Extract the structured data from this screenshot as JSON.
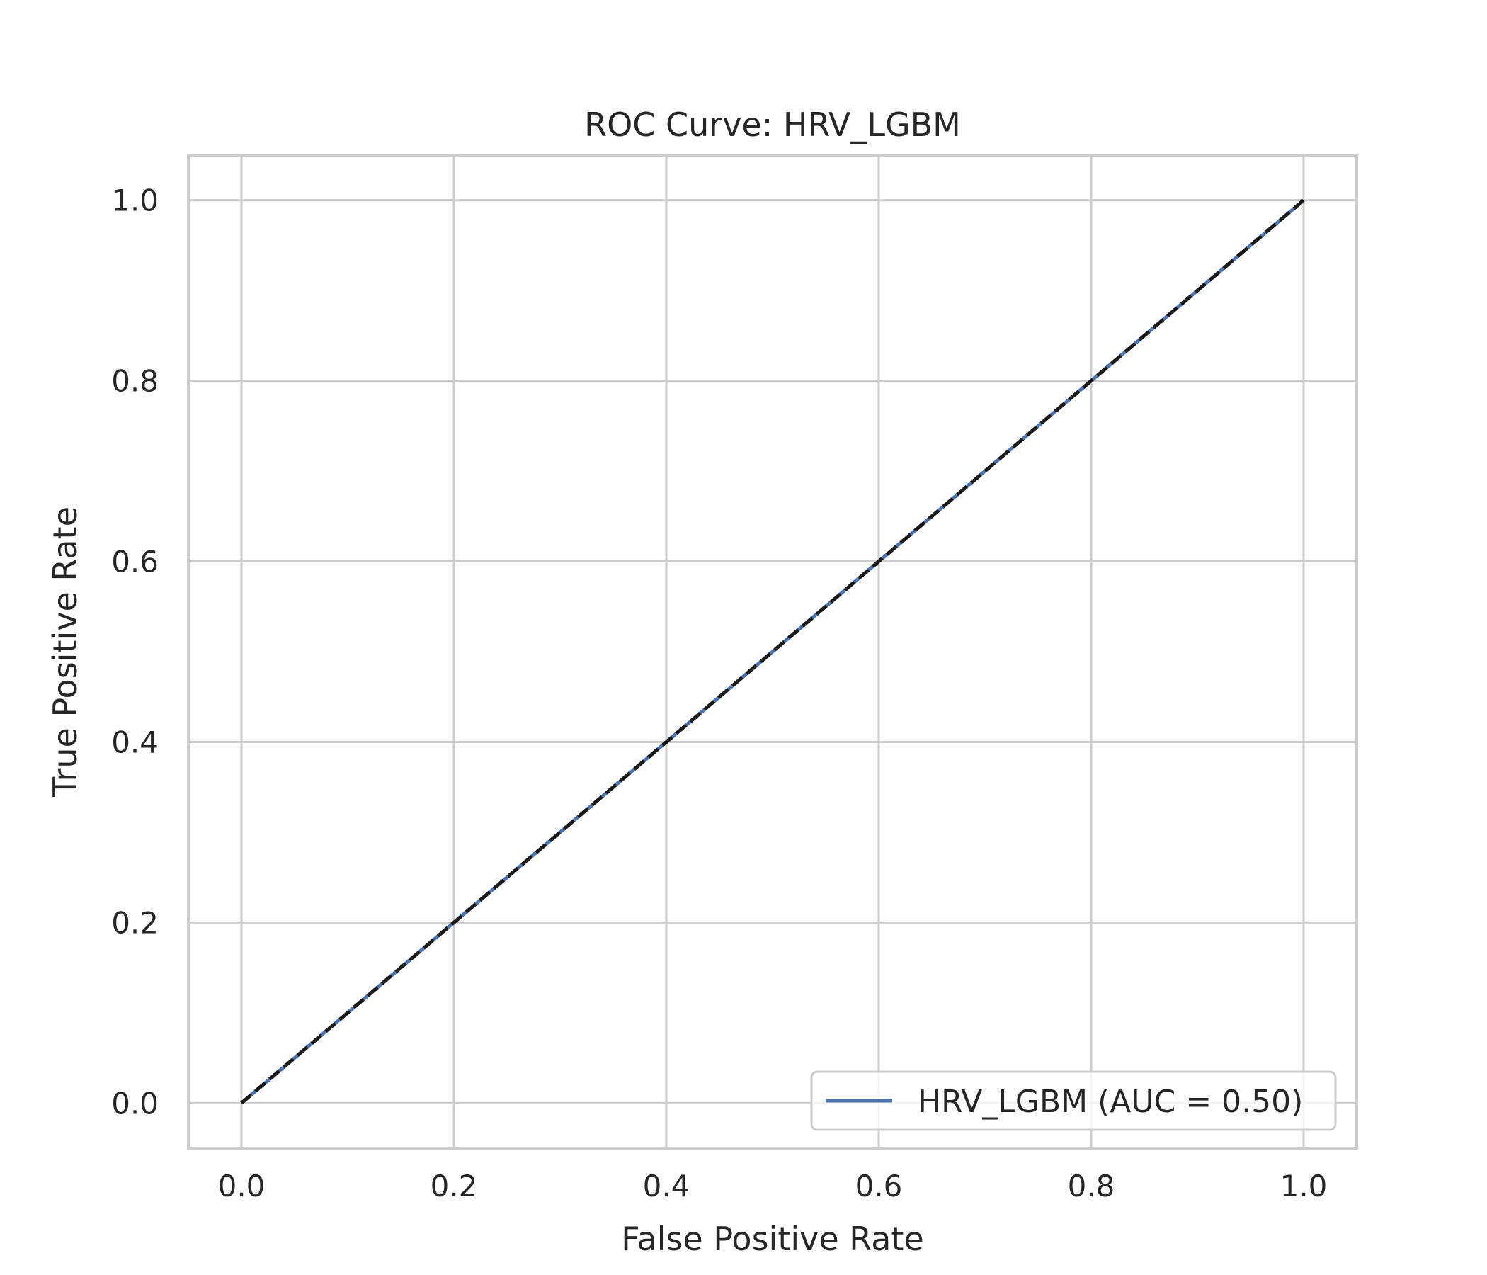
{
  "chart_data": {
    "type": "line",
    "title": "ROC Curve: HRV_LGBM",
    "xlabel": "False Positive Rate",
    "ylabel": "True Positive Rate",
    "xlim": [
      -0.05,
      1.05
    ],
    "ylim": [
      -0.05,
      1.05
    ],
    "xticks": [
      0.0,
      0.2,
      0.4,
      0.6,
      0.8,
      1.0
    ],
    "yticks": [
      0.0,
      0.2,
      0.4,
      0.6,
      0.8,
      1.0
    ],
    "xtick_labels": [
      "0.0",
      "0.2",
      "0.4",
      "0.6",
      "0.8",
      "1.0"
    ],
    "ytick_labels": [
      "0.0",
      "0.2",
      "0.4",
      "0.6",
      "0.8",
      "1.0"
    ],
    "grid": true,
    "legend_position": "lower-right",
    "series": [
      {
        "name": "HRV_LGBM (AUC = 0.50)",
        "x": [
          0.0,
          1.0
        ],
        "y": [
          0.0,
          1.0
        ],
        "color": "#4c72b0",
        "style": "solid"
      }
    ],
    "reference_line": {
      "x": [
        0.0,
        1.0
      ],
      "y": [
        0.0,
        1.0
      ],
      "color": "#1a1a1a",
      "style": "dashed"
    }
  }
}
